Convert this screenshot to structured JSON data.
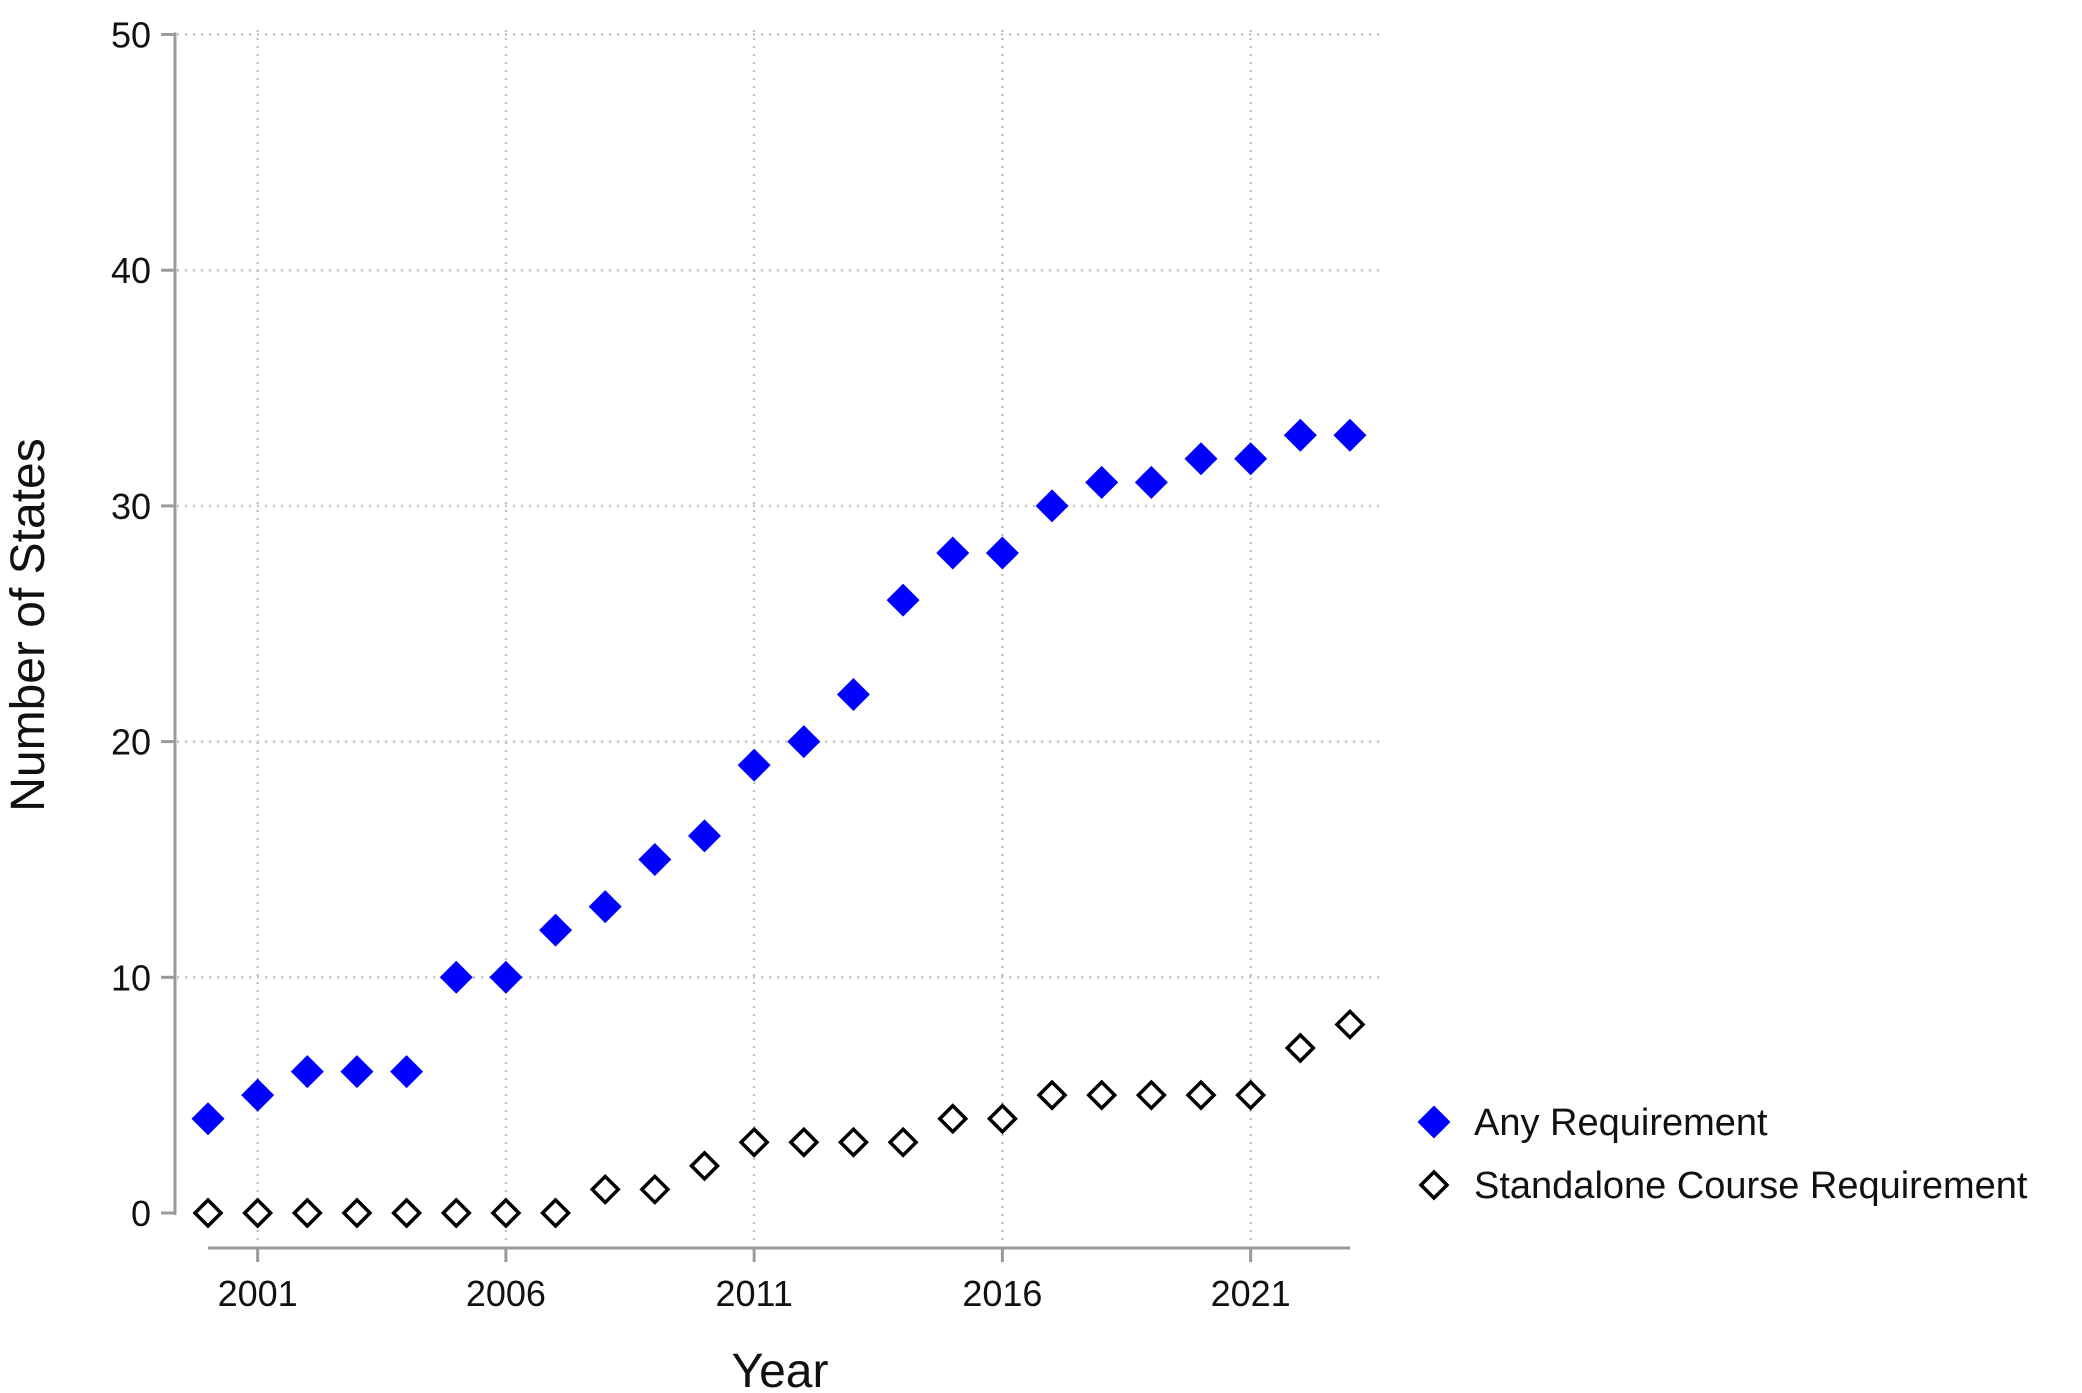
{
  "chart_data": {
    "type": "scatter",
    "title": "",
    "xlabel": "Year",
    "ylabel": "Number of States",
    "xlim": [
      2000,
      2023
    ],
    "ylim": [
      0,
      50
    ],
    "x_ticks": [
      2001,
      2006,
      2011,
      2016,
      2021
    ],
    "y_ticks": [
      0,
      10,
      20,
      30,
      40,
      50
    ],
    "grid": true,
    "legend_position": "right",
    "x": [
      2000,
      2001,
      2002,
      2003,
      2004,
      2005,
      2006,
      2007,
      2008,
      2009,
      2010,
      2011,
      2012,
      2013,
      2014,
      2015,
      2016,
      2017,
      2018,
      2019,
      2020,
      2021,
      2022,
      2023
    ],
    "series": [
      {
        "name": "Any Requirement",
        "marker": "filled-diamond",
        "color": "#0000ff",
        "values": [
          4,
          5,
          6,
          6,
          6,
          10,
          10,
          12,
          13,
          15,
          16,
          19,
          20,
          22,
          26,
          28,
          28,
          30,
          31,
          31,
          32,
          32,
          33,
          33
        ]
      },
      {
        "name": "Standalone Course Requirement",
        "marker": "hollow-diamond",
        "color": "#000000",
        "values": [
          0,
          0,
          0,
          0,
          0,
          0,
          0,
          0,
          1,
          1,
          2,
          3,
          3,
          3,
          3,
          4,
          4,
          5,
          5,
          5,
          5,
          5,
          7,
          8
        ]
      }
    ]
  }
}
